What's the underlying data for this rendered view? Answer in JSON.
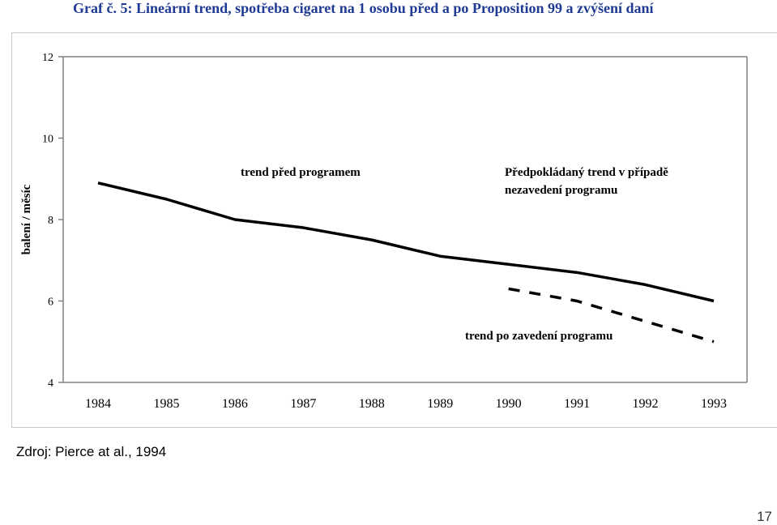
{
  "title": "Graf č. 5: Lineární trend, spotřeba cigaret na 1 osobu před a po Proposition 99 a zvýšení daní",
  "source": "Zdroj: Pierce at al., 1994",
  "page_number": "17",
  "chart_data": {
    "type": "line",
    "title": "",
    "xlabel": "",
    "ylabel": "balení / měsíc",
    "categories": [
      "1984",
      "1985",
      "1986",
      "1987",
      "1988",
      "1989",
      "1990",
      "1991",
      "1992",
      "1993"
    ],
    "ylim": [
      4,
      12
    ],
    "yticks": [
      "4",
      "6",
      "8",
      "10",
      "12"
    ],
    "grid": false,
    "series": [
      {
        "name": "trend před programem",
        "style": "solid",
        "x": [
          "1984",
          "1985",
          "1986",
          "1987",
          "1988",
          "1989",
          "1990",
          "1991",
          "1992",
          "1993"
        ],
        "values": [
          8.9,
          8.5,
          8.0,
          7.8,
          7.5,
          7.1,
          6.9,
          6.7,
          6.4,
          6.0
        ]
      },
      {
        "name": "trend po zavedení programu",
        "style": "dashed",
        "x": [
          "1990",
          "1991",
          "1992",
          "1993"
        ],
        "values": [
          6.3,
          6.0,
          5.5,
          5.0
        ]
      }
    ],
    "annotations": [
      {
        "text": "trend před programem",
        "near": "1987",
        "y": 9.1
      },
      {
        "text": "Předpokládaný trend v případě",
        "near": "1991",
        "y": 9.1
      },
      {
        "text": "nezavedení programu",
        "near": "1991",
        "y": 8.7
      },
      {
        "text": "trend po zavedení programu",
        "near": "1991",
        "y": 5.1
      }
    ],
    "colors": {
      "line": "#000000",
      "axis": "#808080",
      "title": "#1f3a93"
    }
  }
}
